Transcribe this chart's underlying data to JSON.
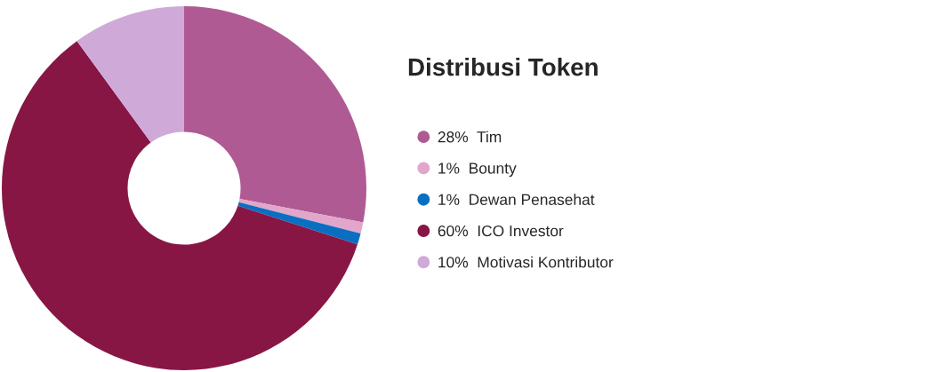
{
  "chart_data": {
    "type": "donut",
    "title": "Distribusi Token",
    "categories": [
      "Tim",
      "Bounty",
      "Dewan Penasehat",
      "ICO Investor",
      "Motivasi Kontributor"
    ],
    "values": [
      28,
      1,
      1,
      60,
      10
    ],
    "value_labels": [
      "28%",
      "1%",
      "1%",
      "60%",
      "10%"
    ],
    "colors": [
      "#b05a94",
      "#e2a6cb",
      "#0a6fc2",
      "#871645",
      "#cfaad9"
    ],
    "legend": "right"
  }
}
